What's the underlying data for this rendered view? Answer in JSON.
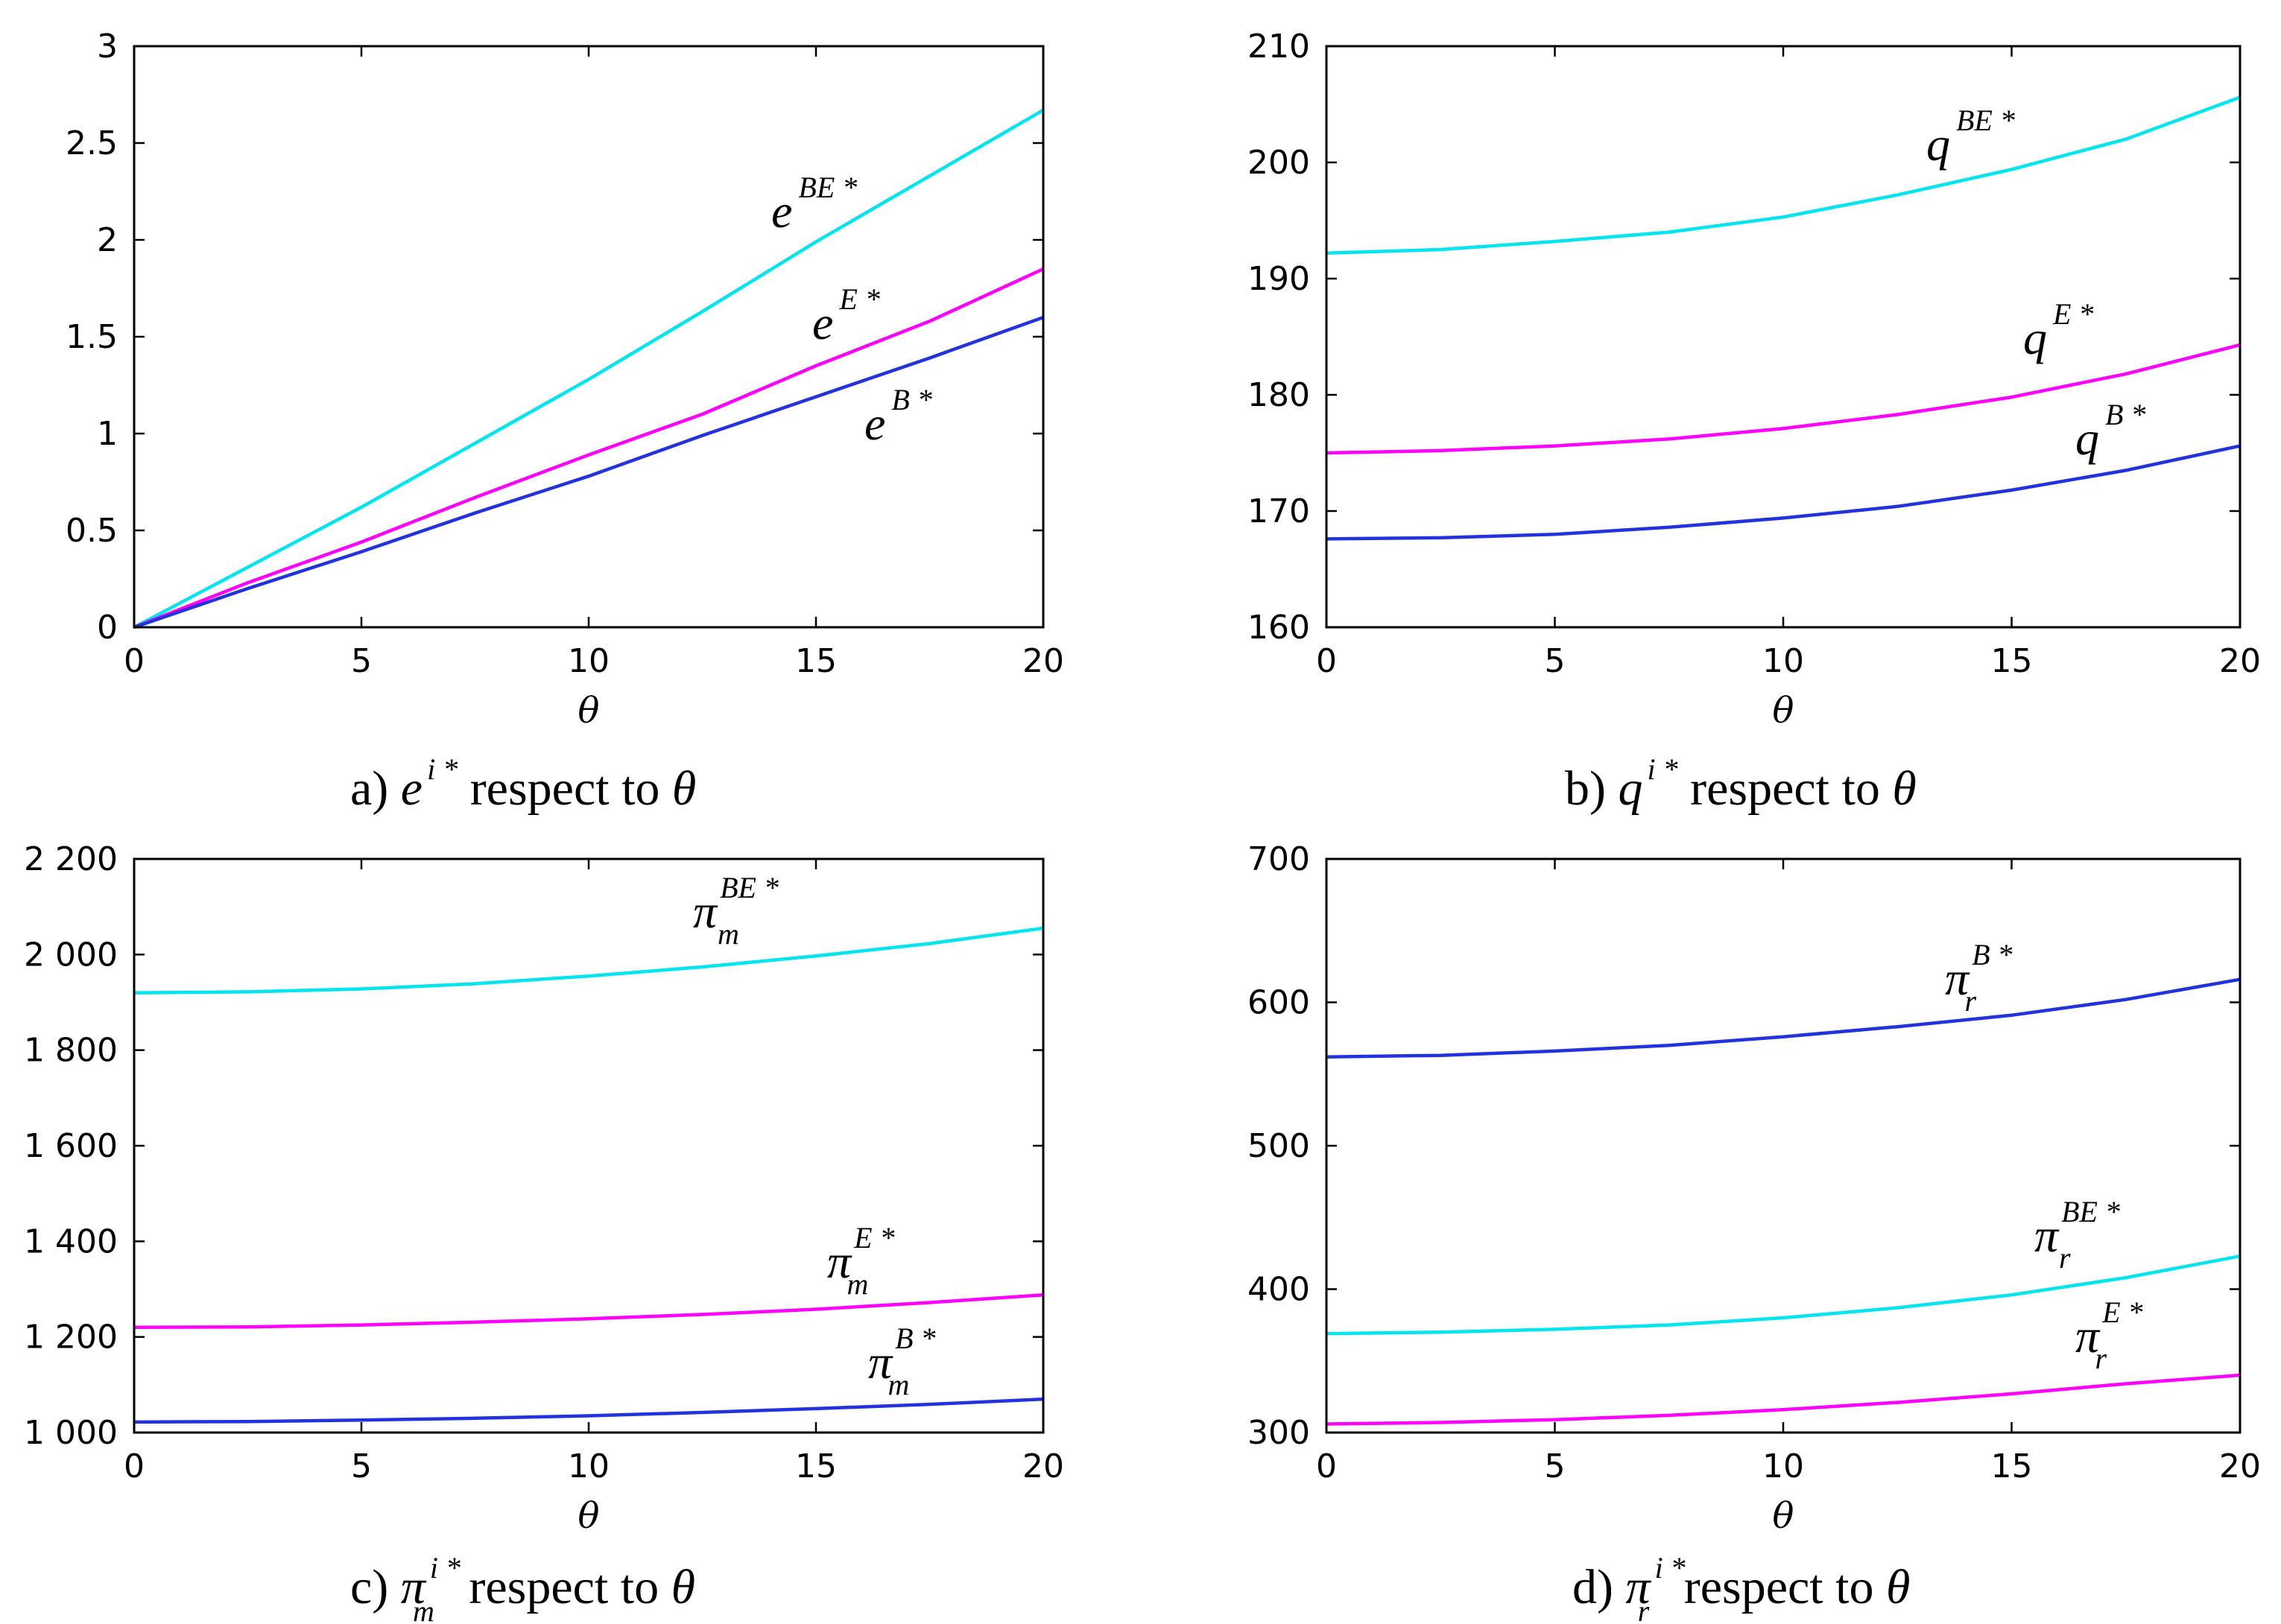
{
  "colors": {
    "cyan": "#00e5ee",
    "magenta": "#ff00ff",
    "blue": "#2233dd"
  },
  "chart_data": [
    {
      "id": "a",
      "type": "line",
      "xlabel": "θ",
      "xlim": [
        0,
        20
      ],
      "ylim": [
        0,
        3
      ],
      "xticks": [
        0,
        5,
        10,
        15,
        20
      ],
      "xtick_labels": [
        "0",
        "5",
        "10",
        "15",
        "20"
      ],
      "yticks": [
        0,
        0.5,
        1,
        1.5,
        2,
        2.5,
        3
      ],
      "ytick_labels": [
        "0",
        "0.5",
        "1",
        "1.5",
        "2",
        "2.5",
        "3"
      ],
      "caption": {
        "prefix": "a) ",
        "var": "e",
        "sup": "i *",
        "sub": "",
        "text": " respect to ",
        "theta": "θ"
      },
      "series": [
        {
          "name": "e^BE*",
          "color": "cyan",
          "label": {
            "base": "e",
            "sup": "BE *",
            "sub": ""
          },
          "x": [
            0,
            2.5,
            5,
            7.5,
            10,
            12.5,
            15,
            17.5,
            20
          ],
          "y": [
            0,
            0.31,
            0.62,
            0.95,
            1.28,
            1.63,
            1.99,
            2.33,
            2.67
          ]
        },
        {
          "name": "e^E*",
          "color": "magenta",
          "label": {
            "base": "e",
            "sup": "E *",
            "sub": ""
          },
          "x": [
            0,
            2.5,
            5,
            7.5,
            10,
            12.5,
            15,
            17.5,
            20
          ],
          "y": [
            0,
            0.23,
            0.44,
            0.67,
            0.89,
            1.1,
            1.35,
            1.58,
            1.85
          ]
        },
        {
          "name": "e^B*",
          "color": "blue",
          "label": {
            "base": "e",
            "sup": "B *",
            "sub": ""
          },
          "x": [
            0,
            2.5,
            5,
            7.5,
            10,
            12.5,
            15,
            17.5,
            20
          ],
          "y": [
            0,
            0.2,
            0.39,
            0.59,
            0.78,
            0.99,
            1.19,
            1.39,
            1.6
          ]
        }
      ]
    },
    {
      "id": "b",
      "type": "line",
      "xlabel": "θ",
      "xlim": [
        0,
        20
      ],
      "ylim": [
        160,
        210
      ],
      "xticks": [
        0,
        5,
        10,
        15,
        20
      ],
      "xtick_labels": [
        "0",
        "5",
        "10",
        "15",
        "20"
      ],
      "yticks": [
        160,
        170,
        180,
        190,
        200,
        210
      ],
      "ytick_labels": [
        "160",
        "170",
        "180",
        "190",
        "200",
        "210"
      ],
      "caption": {
        "prefix": "b) ",
        "var": "q",
        "sup": "i *",
        "sub": "",
        "text": " respect to ",
        "theta": "θ"
      },
      "series": [
        {
          "name": "q^BE*",
          "color": "cyan",
          "label": {
            "base": "q",
            "sup": "BE *",
            "sub": ""
          },
          "x": [
            0,
            2.5,
            5,
            7.5,
            10,
            12.5,
            15,
            17.5,
            20
          ],
          "y": [
            192.2,
            192.5,
            193.2,
            194.0,
            195.3,
            197.2,
            199.4,
            202.0,
            205.6
          ]
        },
        {
          "name": "q^E*",
          "color": "magenta",
          "label": {
            "base": "q",
            "sup": "E *",
            "sub": ""
          },
          "x": [
            0,
            2.5,
            5,
            7.5,
            10,
            12.5,
            15,
            17.5,
            20
          ],
          "y": [
            175.0,
            175.2,
            175.6,
            176.2,
            177.1,
            178.3,
            179.8,
            181.8,
            184.3
          ]
        },
        {
          "name": "q^B*",
          "color": "blue",
          "label": {
            "base": "q",
            "sup": "B *",
            "sub": ""
          },
          "x": [
            0,
            2.5,
            5,
            7.5,
            10,
            12.5,
            15,
            17.5,
            20
          ],
          "y": [
            167.6,
            167.7,
            168.0,
            168.6,
            169.4,
            170.4,
            171.8,
            173.5,
            175.6
          ]
        }
      ]
    },
    {
      "id": "c",
      "type": "line",
      "xlabel": "θ",
      "xlim": [
        0,
        20
      ],
      "ylim": [
        1000,
        2200
      ],
      "xticks": [
        0,
        5,
        10,
        15,
        20
      ],
      "xtick_labels": [
        "0",
        "5",
        "10",
        "15",
        "20"
      ],
      "yticks": [
        1000,
        1200,
        1400,
        1600,
        1800,
        2000,
        2200
      ],
      "ytick_labels": [
        "1 000",
        "1 200",
        "1 400",
        "1 600",
        "1 800",
        "2 000",
        "2 200"
      ],
      "caption": {
        "prefix": "c) ",
        "var": "π",
        "sup": "i *",
        "sub": "m",
        "text": " respect to ",
        "theta": "θ"
      },
      "series": [
        {
          "name": "pi_m^BE*",
          "color": "cyan",
          "label": {
            "base": "π",
            "sup": "BE *",
            "sub": "m"
          },
          "x": [
            0,
            2.5,
            5,
            7.5,
            10,
            12.5,
            15,
            17.5,
            20
          ],
          "y": [
            1920,
            1922,
            1928,
            1939,
            1955,
            1974,
            1997,
            2023,
            2055
          ]
        },
        {
          "name": "pi_m^E*",
          "color": "magenta",
          "label": {
            "base": "π",
            "sup": "E *",
            "sub": "m"
          },
          "x": [
            0,
            2.5,
            5,
            7.5,
            10,
            12.5,
            15,
            17.5,
            20
          ],
          "y": [
            1220,
            1221,
            1225,
            1231,
            1238,
            1247,
            1258,
            1272,
            1288
          ]
        },
        {
          "name": "pi_m^B*",
          "color": "blue",
          "label": {
            "base": "π",
            "sup": "B *",
            "sub": "m"
          },
          "x": [
            0,
            2.5,
            5,
            7.5,
            10,
            12.5,
            15,
            17.5,
            20
          ],
          "y": [
            1022,
            1023,
            1026,
            1030,
            1035,
            1042,
            1050,
            1059,
            1070
          ]
        }
      ]
    },
    {
      "id": "d",
      "type": "line",
      "xlabel": "θ",
      "xlim": [
        0,
        20
      ],
      "ylim": [
        300,
        700
      ],
      "xticks": [
        0,
        5,
        10,
        15,
        20
      ],
      "xtick_labels": [
        "0",
        "5",
        "10",
        "15",
        "20"
      ],
      "yticks": [
        300,
        400,
        500,
        600,
        700
      ],
      "ytick_labels": [
        "300",
        "400",
        "500",
        "600",
        "700"
      ],
      "caption": {
        "prefix": "d) ",
        "var": "π",
        "sup": "i *",
        "sub": "r",
        "text": " respect to ",
        "theta": "θ"
      },
      "series": [
        {
          "name": "pi_r^B*",
          "color": "blue",
          "label": {
            "base": "π",
            "sup": "B *",
            "sub": "r"
          },
          "x": [
            0,
            2.5,
            5,
            7.5,
            10,
            12.5,
            15,
            17.5,
            20
          ],
          "y": [
            562,
            563,
            566,
            570,
            576,
            583,
            591,
            602,
            616
          ]
        },
        {
          "name": "pi_r^BE*",
          "color": "cyan",
          "label": {
            "base": "π",
            "sup": "BE *",
            "sub": "r"
          },
          "x": [
            0,
            2.5,
            5,
            7.5,
            10,
            12.5,
            15,
            17.5,
            20
          ],
          "y": [
            369,
            370,
            372,
            375,
            380,
            387,
            396,
            408,
            423
          ]
        },
        {
          "name": "pi_r^E*",
          "color": "magenta",
          "label": {
            "base": "π",
            "sup": "E *",
            "sub": "r"
          },
          "x": [
            0,
            2.5,
            5,
            7.5,
            10,
            12.5,
            15,
            17.5,
            20
          ],
          "y": [
            306,
            307,
            309,
            312,
            316,
            321,
            327,
            334,
            340
          ]
        }
      ]
    }
  ]
}
